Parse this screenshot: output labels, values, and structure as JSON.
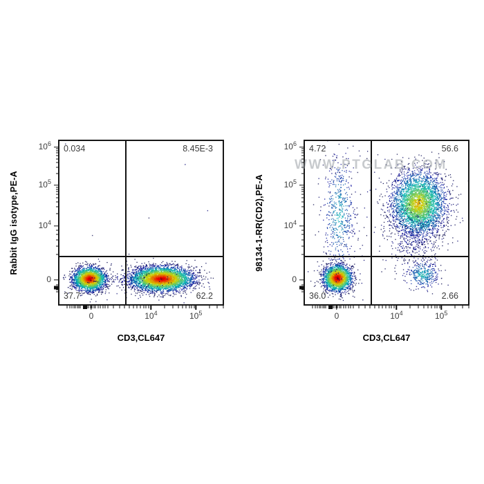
{
  "watermark": "WWW.PTGLAB.COM",
  "figure": {
    "background": "#ffffff",
    "axis_color": "#161616",
    "quadrant_label_color": "#3c3c3c",
    "watermark_color": "#8f959b",
    "colormap": "jet-pseudocolor"
  },
  "chart_data": {
    "type": "scatter",
    "subtype": "flow-cytometry-pseudocolor-density",
    "grid": false,
    "legend": "none",
    "x_axis": {
      "label": "CD3,CL647",
      "scale": "biexponential",
      "ticks": [
        {
          "frac": 0.2,
          "text": "0"
        },
        {
          "frac": 0.56,
          "base": "10",
          "exp": "4"
        },
        {
          "frac": 0.83,
          "base": "10",
          "exp": "5"
        }
      ],
      "minor_fracs": [
        0.055,
        0.07,
        0.085,
        0.095,
        0.105,
        0.115,
        0.125,
        0.135,
        0.175,
        0.185,
        0.195,
        0.205,
        0.215,
        0.225,
        0.24,
        0.255,
        0.27,
        0.285,
        0.3,
        0.335,
        0.37,
        0.4,
        0.43,
        0.455,
        0.475,
        0.495,
        0.515,
        0.53,
        0.545,
        0.642,
        0.69,
        0.724,
        0.751,
        0.772,
        0.79,
        0.806,
        0.82,
        0.912,
        0.96,
        0.994
      ],
      "thick_fracs": [
        0.163
      ]
    },
    "y_axis": {
      "scale": "biexponential",
      "ticks": [
        {
          "frac": 0.046,
          "base": "10",
          "exp": "6"
        },
        {
          "frac": 0.275,
          "base": "10",
          "exp": "5"
        },
        {
          "frac": 0.521,
          "base": "10",
          "exp": "4"
        },
        {
          "frac": 0.846,
          "text": "0"
        }
      ],
      "minor_fracs": [
        0.056,
        0.068,
        0.081,
        0.097,
        0.115,
        0.137,
        0.166,
        0.206,
        0.286,
        0.299,
        0.313,
        0.33,
        0.349,
        0.373,
        0.404,
        0.447,
        0.545,
        0.572,
        0.603,
        0.641,
        0.69,
        0.875,
        0.883,
        0.898,
        0.906,
        0.915
      ],
      "thick_fracs": [
        0.89
      ]
    },
    "gate": {
      "x_frac": 0.405,
      "y_frac": 0.708
    },
    "panels": [
      {
        "ylabel": "Rabbit IgG isotype,PE-A",
        "xlabel": "CD3,CL647",
        "quadrants": {
          "top_left": "0.034",
          "top_right": "8.45E-3",
          "bottom_left": "37.7",
          "bottom_right": "62.2"
        },
        "seed": 42,
        "clusters": [
          {
            "x": 0.185,
            "y": 0.845,
            "sx": 0.05,
            "sy": 0.036,
            "n": 2600,
            "peak": 0.92
          },
          {
            "x": 0.625,
            "y": 0.845,
            "sx": 0.095,
            "sy": 0.037,
            "n": 4200,
            "peak": 0.92
          },
          {
            "x": 0.42,
            "y": 0.85,
            "sx": 0.15,
            "sy": 0.05,
            "n": 110,
            "peak": 0.08
          },
          {
            "x": 0.5,
            "y": 0.42,
            "sx": 0.3,
            "sy": 0.26,
            "n": 7,
            "peak": 0.03
          }
        ]
      },
      {
        "ylabel": "98134-1-RR(CD2),PE-A",
        "xlabel": "CD3,CL647",
        "quadrants": {
          "top_left": "4.72",
          "top_right": "56.6",
          "bottom_left": "36.0",
          "bottom_right": "2.66"
        },
        "seed": 1337,
        "clusters": [
          {
            "x": 0.2,
            "y": 0.84,
            "sx": 0.043,
            "sy": 0.04,
            "n": 2300,
            "peak": 0.95
          },
          {
            "x": 0.695,
            "y": 0.385,
            "sx": 0.082,
            "sy": 0.098,
            "n": 3600,
            "peak": 0.68
          },
          {
            "x": 0.67,
            "y": 0.6,
            "sx": 0.085,
            "sy": 0.09,
            "n": 320,
            "peak": 0.12
          },
          {
            "x": 0.21,
            "y": 0.45,
            "sx": 0.048,
            "sy": 0.185,
            "n": 520,
            "peak": 0.38
          },
          {
            "x": 0.72,
            "y": 0.82,
            "sx": 0.052,
            "sy": 0.042,
            "n": 330,
            "peak": 0.4
          },
          {
            "x": 0.52,
            "y": 0.45,
            "sx": 0.3,
            "sy": 0.27,
            "n": 130,
            "peak": 0.04
          }
        ]
      }
    ]
  }
}
